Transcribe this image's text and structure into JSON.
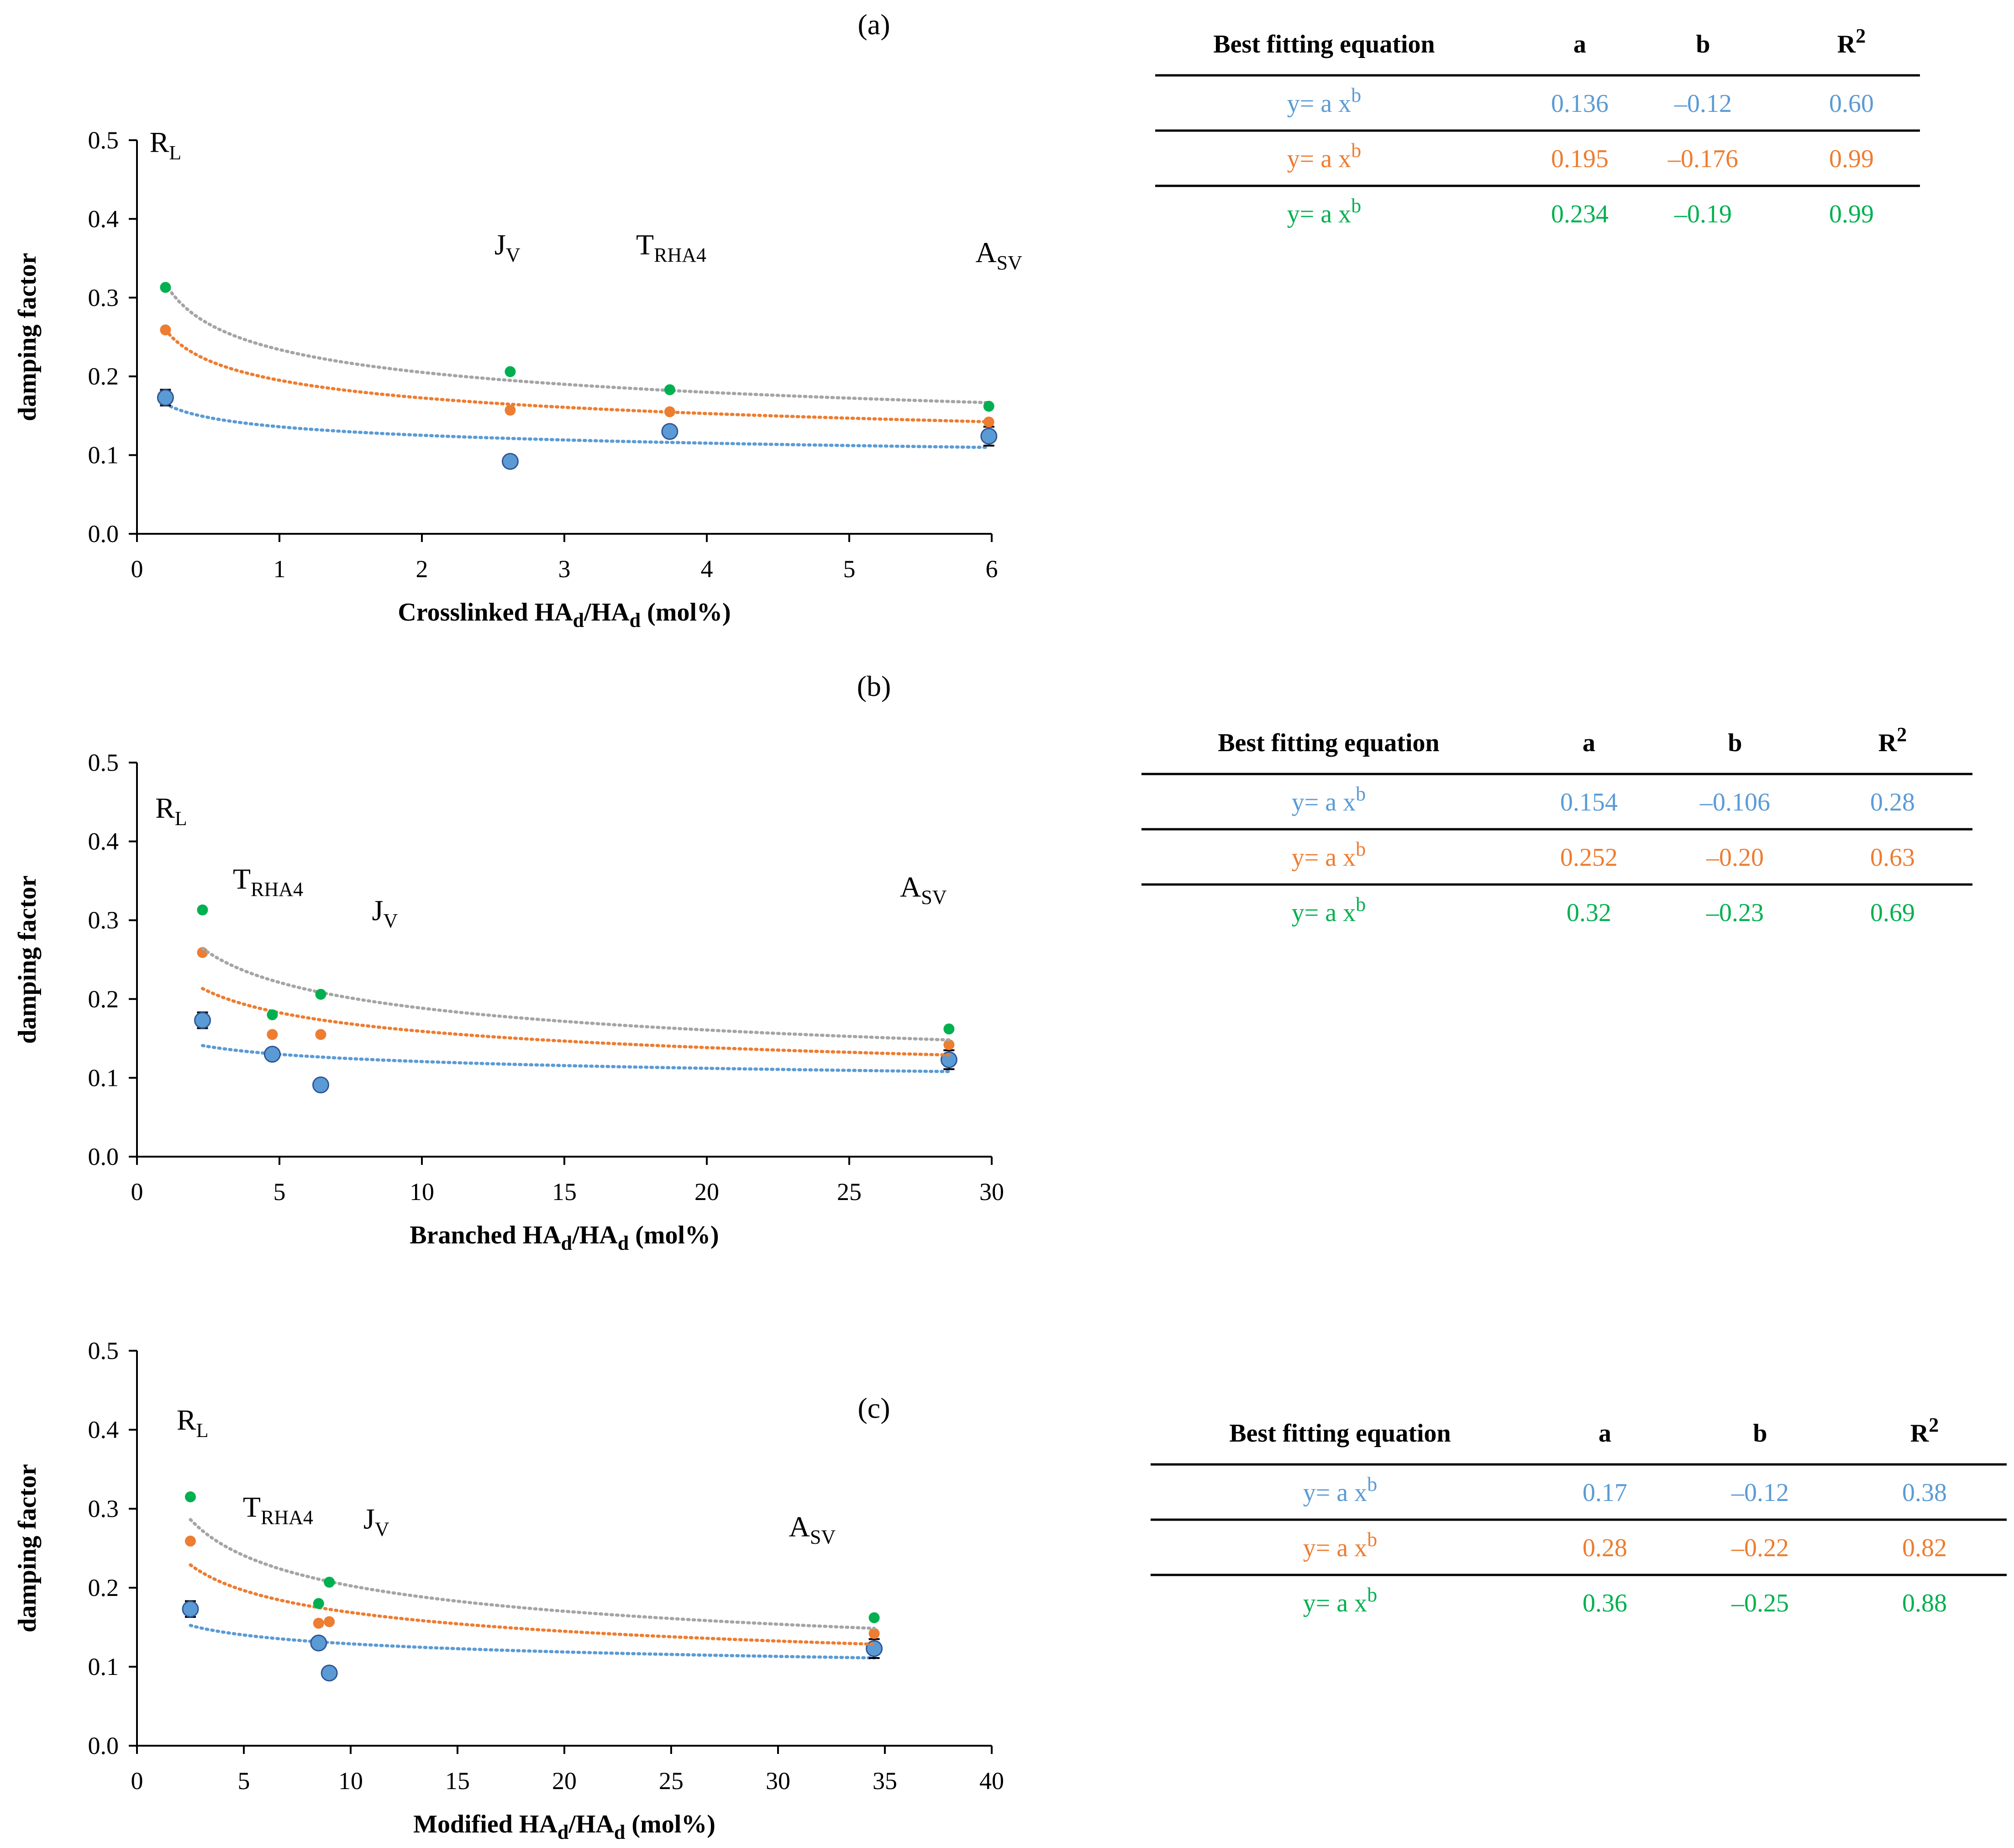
{
  "colors": {
    "blue": "#4472C4",
    "blue_marker": "#5B9BD5",
    "orange": "#ED7D31",
    "green": "#00B050",
    "gray_trend": "#A5A5A5",
    "axis": "#000000"
  },
  "chart_data": [
    {
      "type": "scatter",
      "panel": "(a)",
      "xlabel": "Crosslinked HA",
      "xlabel_sub1": "d",
      "xlabel_mid": "/HA",
      "xlabel_sub2": "d",
      "xlabel_tail": " (mol%)",
      "ylabel": "damping factor",
      "xlim": [
        0,
        6
      ],
      "ylim": [
        0,
        0.5
      ],
      "xticks": [
        0,
        1,
        2,
        3,
        4,
        5,
        6
      ],
      "yticks": [
        "0.0",
        "0.1",
        "0.2",
        "0.3",
        "0.4",
        "0.5"
      ],
      "annotations": [
        {
          "main": "R",
          "sub": "L",
          "x": 0.2,
          "y": 0.485
        },
        {
          "main": "J",
          "sub": "V",
          "x": 2.6,
          "y": 0.355
        },
        {
          "main": "T",
          "sub": "RHA4",
          "x": 3.75,
          "y": 0.355
        },
        {
          "main": "A",
          "sub": "SV",
          "x": 6.05,
          "y": 0.345
        }
      ],
      "series": [
        {
          "name": "blue",
          "x": [
            0.2,
            2.62,
            3.74,
            5.98
          ],
          "y": [
            0.173,
            0.092,
            0.13,
            0.124
          ],
          "err": [
            0.01,
            0.005,
            0.005,
            0.012
          ],
          "fit": {
            "a": 0.136,
            "b": -0.12
          }
        },
        {
          "name": "orange",
          "x": [
            0.2,
            2.62,
            3.74,
            5.98
          ],
          "y": [
            0.259,
            0.157,
            0.155,
            0.142
          ],
          "err": [
            0,
            0,
            0,
            0
          ],
          "fit": {
            "a": 0.195,
            "b": -0.176
          }
        },
        {
          "name": "green",
          "x": [
            0.2,
            2.62,
            3.74,
            5.98
          ],
          "y": [
            0.313,
            0.206,
            0.183,
            0.162
          ],
          "err": [
            0,
            0,
            0,
            0
          ],
          "fit": {
            "a": 0.234,
            "b": -0.19
          }
        }
      ],
      "table": {
        "headers": [
          "Best fitting equation",
          "a",
          "b",
          "R"
        ],
        "header_sup": "2",
        "rows": [
          {
            "series": "blue",
            "equation": "y= a x",
            "sup": "b",
            "a": "0.136",
            "b": "–0.12",
            "r2": "0.60"
          },
          {
            "series": "orange",
            "equation": "y= a x",
            "sup": "b",
            "a": "0.195",
            "b": "–0.176",
            "r2": "0.99"
          },
          {
            "series": "green",
            "equation": "y= a x",
            "sup": "b",
            "a": "0.234",
            "b": "–0.19",
            "r2": "0.99"
          }
        ]
      }
    },
    {
      "type": "scatter",
      "panel": "(b)",
      "xlabel": "Branched HA",
      "xlabel_sub1": "d",
      "xlabel_mid": "/HA",
      "xlabel_sub2": "d",
      "xlabel_tail": " (mol%)",
      "ylabel": "damping factor",
      "xlim": [
        0,
        30
      ],
      "ylim": [
        0,
        0.5
      ],
      "xticks": [
        0,
        5,
        10,
        15,
        20,
        25,
        30
      ],
      "yticks": [
        "0.0",
        "0.1",
        "0.2",
        "0.3",
        "0.4",
        "0.5"
      ],
      "annotations": [
        {
          "main": "R",
          "sub": "L",
          "x": 1.2,
          "y": 0.43
        },
        {
          "main": "T",
          "sub": "RHA4",
          "x": 4.6,
          "y": 0.34
        },
        {
          "main": "J",
          "sub": "V",
          "x": 8.7,
          "y": 0.3
        },
        {
          "main": "A",
          "sub": "SV",
          "x": 27.6,
          "y": 0.33
        }
      ],
      "series": [
        {
          "name": "blue",
          "x": [
            2.3,
            4.75,
            6.45,
            28.5
          ],
          "y": [
            0.173,
            0.13,
            0.091,
            0.123
          ],
          "err": [
            0.01,
            0.005,
            0.005,
            0.012
          ],
          "fit": {
            "a": 0.154,
            "b": -0.106
          }
        },
        {
          "name": "orange",
          "x": [
            2.3,
            4.75,
            6.45,
            28.5
          ],
          "y": [
            0.259,
            0.155,
            0.155,
            0.142
          ],
          "err": [
            0,
            0,
            0,
            0
          ],
          "fit": {
            "a": 0.252,
            "b": -0.2
          }
        },
        {
          "name": "green",
          "x": [
            2.3,
            4.75,
            6.45,
            28.5
          ],
          "y": [
            0.313,
            0.18,
            0.206,
            0.162
          ],
          "err": [
            0,
            0,
            0,
            0
          ],
          "fit": {
            "a": 0.32,
            "b": -0.23
          }
        }
      ],
      "table": {
        "headers": [
          "Best fitting equation",
          "a",
          "b",
          "R"
        ],
        "header_sup": "2",
        "rows": [
          {
            "series": "blue",
            "equation": "y= a x",
            "sup": "b",
            "a": "0.154",
            "b": "–0.106",
            "r2": "0.28"
          },
          {
            "series": "orange",
            "equation": "y= a x",
            "sup": "b",
            "a": "0.252",
            "b": "–0.20",
            "r2": "0.63"
          },
          {
            "series": "green",
            "equation": "y= a x",
            "sup": "b",
            "a": "0.32",
            "b": "–0.23",
            "r2": "0.69"
          }
        ]
      }
    },
    {
      "type": "scatter",
      "panel": "(c)",
      "xlabel": "Modified HA",
      "xlabel_sub1": "d",
      "xlabel_mid": "/HA",
      "xlabel_sub2": "d",
      "xlabel_tail": " (mol%)",
      "ylabel": "damping factor",
      "xlim": [
        0,
        40
      ],
      "ylim": [
        0,
        0.5
      ],
      "xticks": [
        0,
        5,
        10,
        15,
        20,
        25,
        30,
        35,
        40
      ],
      "yticks": [
        "0.0",
        "0.1",
        "0.2",
        "0.3",
        "0.4",
        "0.5"
      ],
      "annotations": [
        {
          "main": "R",
          "sub": "L",
          "x": 2.6,
          "y": 0.4
        },
        {
          "main": "T",
          "sub": "RHA4",
          "x": 6.6,
          "y": 0.29
        },
        {
          "main": "J",
          "sub": "V",
          "x": 11.2,
          "y": 0.275
        },
        {
          "main": "A",
          "sub": "SV",
          "x": 31.6,
          "y": 0.265
        }
      ],
      "series": [
        {
          "name": "blue",
          "x": [
            2.5,
            8.5,
            9.0,
            34.5
          ],
          "y": [
            0.173,
            0.13,
            0.092,
            0.123
          ],
          "err": [
            0.01,
            0.005,
            0.005,
            0.012
          ],
          "fit": {
            "a": 0.17,
            "b": -0.12
          }
        },
        {
          "name": "orange",
          "x": [
            2.5,
            8.5,
            9.0,
            34.5
          ],
          "y": [
            0.259,
            0.155,
            0.157,
            0.142
          ],
          "err": [
            0,
            0,
            0,
            0
          ],
          "fit": {
            "a": 0.28,
            "b": -0.22
          }
        },
        {
          "name": "green",
          "x": [
            2.5,
            8.5,
            9.0,
            34.5
          ],
          "y": [
            0.315,
            0.18,
            0.207,
            0.162
          ],
          "err": [
            0,
            0,
            0,
            0
          ],
          "fit": {
            "a": 0.36,
            "b": -0.25
          }
        }
      ],
      "table": {
        "headers": [
          "Best fitting equation",
          "a",
          "b",
          "R"
        ],
        "header_sup": "2",
        "rows": [
          {
            "series": "blue",
            "equation": "y= a x",
            "sup": "b",
            "a": "0.17",
            "b": "–0.12",
            "r2": "0.38"
          },
          {
            "series": "orange",
            "equation": "y= a x",
            "sup": "b",
            "a": "0.28",
            "b": "–0.22",
            "r2": "0.82"
          },
          {
            "series": "green",
            "equation": "y= a x",
            "sup": "b",
            "a": "0.36",
            "b": "–0.25",
            "r2": "0.88"
          }
        ]
      }
    }
  ]
}
